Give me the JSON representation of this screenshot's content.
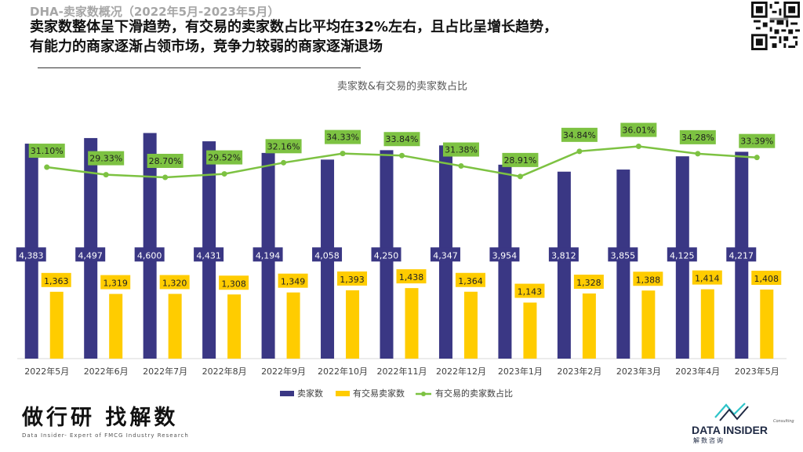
{
  "header": {
    "subtitle": "DHA-卖家数概况（2022年5月-2023年5月）",
    "headline_1": "卖家数整体呈下滑趋势，有交易的卖家数占比平均在32%左右，且占比呈增长趋势，",
    "headline_2": "有能力的商家逐渐占领市场，竞争力较弱的商家逐渐退场"
  },
  "chart_data": {
    "type": "bar",
    "title": "卖家数&有交易的卖家数占比",
    "categories": [
      "2022年5月",
      "2022年6月",
      "2022年7月",
      "2022年8月",
      "2022年9月",
      "2022年10月",
      "2022年11月",
      "2022年12月",
      "2023年1月",
      "2023年2月",
      "2023年3月",
      "2023年4月",
      "2023年5月"
    ],
    "series": [
      {
        "name": "卖家数",
        "type": "bar",
        "color": "#3a3784",
        "values": [
          4383,
          4497,
          4600,
          4431,
          4194,
          4058,
          4250,
          4347,
          3954,
          3812,
          3855,
          4125,
          4217
        ],
        "labels": [
          "4,383",
          "4,497",
          "4,600",
          "4,431",
          "4,194",
          "4,058",
          "4,250",
          "4,347",
          "3,954",
          "3,812",
          "3,855",
          "4,125",
          "4,217"
        ]
      },
      {
        "name": "有交易卖家数",
        "type": "bar",
        "color": "#ffcc00",
        "values": [
          1363,
          1319,
          1320,
          1308,
          1349,
          1393,
          1438,
          1364,
          1143,
          1328,
          1388,
          1414,
          1408
        ],
        "labels": [
          "1,363",
          "1,319",
          "1,320",
          "1,308",
          "1,349",
          "1,393",
          "1,438",
          "1,364",
          "1,143",
          "1,328",
          "1,388",
          "1,414",
          "1,408"
        ]
      },
      {
        "name": "有交易的卖家数占比",
        "type": "line",
        "color": "#7dc242",
        "values": [
          31.1,
          29.33,
          28.7,
          29.52,
          32.16,
          34.33,
          33.84,
          31.38,
          28.91,
          34.84,
          36.01,
          34.28,
          33.39
        ],
        "labels": [
          "31.10%",
          "29.33%",
          "28.70%",
          "29.52%",
          "32.16%",
          "34.33%",
          "33.84%",
          "31.38%",
          "28.91%",
          "34.84%",
          "36.01%",
          "34.28%",
          "33.39%"
        ]
      }
    ],
    "legend_position": "bottom",
    "grid": false
  },
  "footer": {
    "brand_cn": "做行研 找解数",
    "brand_en": "Data Insider- Expert of FMCG Industry Research",
    "logo_text": "DATA INSIDER",
    "logo_sub": "解数咨询",
    "logo_consulting": "Consulting"
  },
  "colors": {
    "bar_primary": "#3a3784",
    "bar_secondary": "#ffcc00",
    "line": "#7dc242"
  }
}
